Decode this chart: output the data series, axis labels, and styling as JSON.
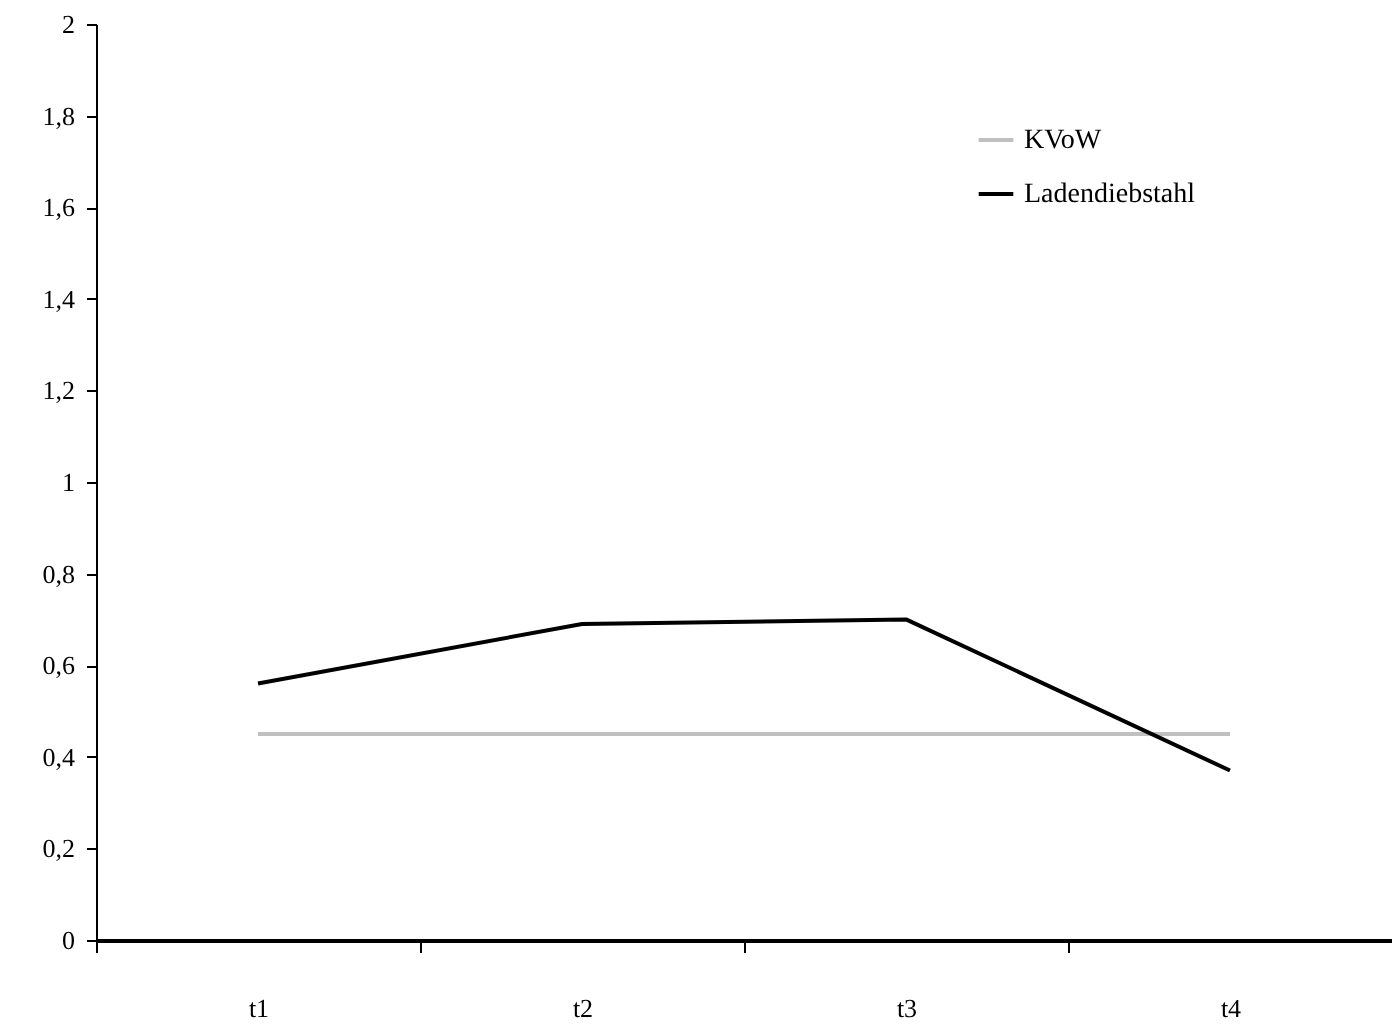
{
  "chart_data": {
    "type": "line",
    "categories": [
      "t1",
      "t2",
      "t3",
      "t4"
    ],
    "series": [
      {
        "name": "KVoW",
        "color": "#c0c0c0",
        "values": [
          0.45,
          0.45,
          0.45,
          0.45
        ]
      },
      {
        "name": "Ladendiebstahl",
        "color": "#000000",
        "values": [
          0.56,
          0.69,
          0.7,
          0.37
        ]
      }
    ],
    "ylim": [
      0,
      2
    ],
    "yticks": [
      0,
      {
        "value": 0.2,
        "label": "0,2"
      },
      {
        "value": 0.4,
        "label": "0,4"
      },
      {
        "value": 0.6,
        "label": "0,6"
      },
      {
        "value": 0.8,
        "label": "0,8"
      },
      1,
      {
        "value": 1.2,
        "label": "1,2"
      },
      {
        "value": 1.4,
        "label": "1,4"
      },
      {
        "value": 1.6,
        "label": "1,6"
      },
      {
        "value": 1.8,
        "label": "1,8"
      },
      2
    ],
    "grid": false,
    "legend": "top right",
    "marker": "none",
    "line_style": "solid"
  }
}
